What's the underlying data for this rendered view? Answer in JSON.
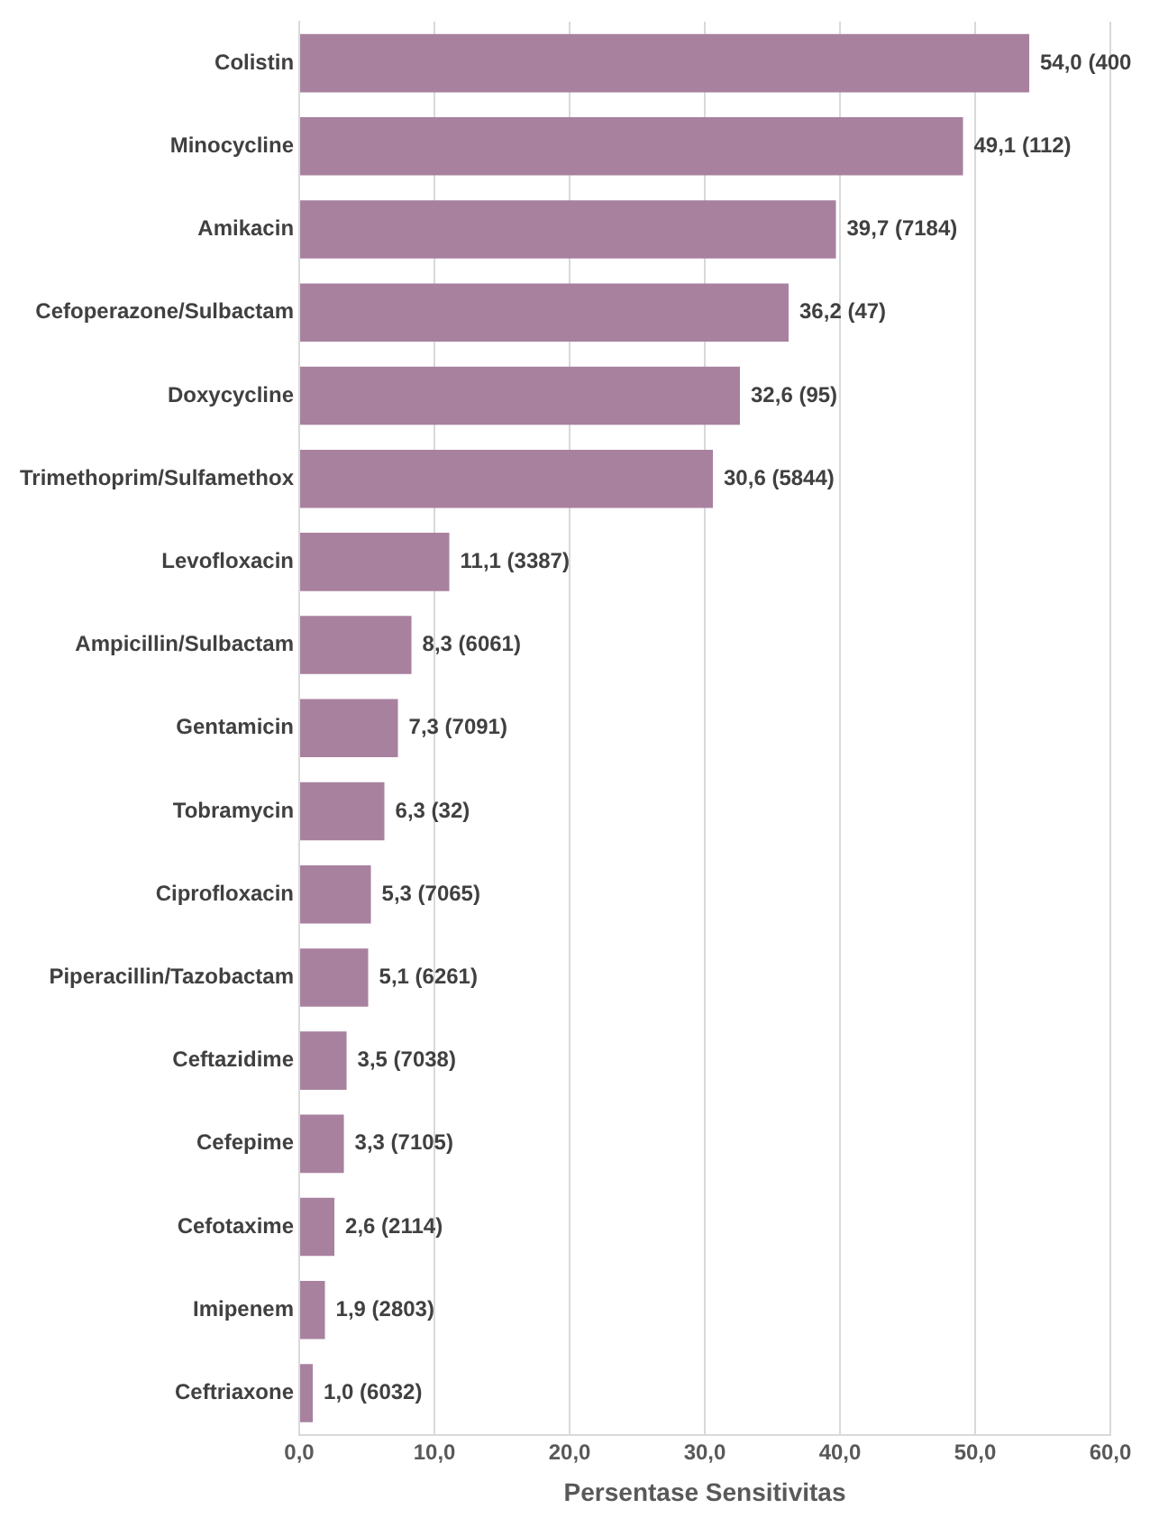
{
  "chart_data": {
    "type": "bar",
    "orientation": "horizontal",
    "xlabel": "Persentase Sensitivitas",
    "categories": [
      "Colistin",
      "Minocycline",
      "Amikacin",
      "Cefoperazone/Sulbactam",
      "Doxycycline",
      "Trimethoprim/Sulfamethox",
      "Levofloxacin",
      "Ampicillin/Sulbactam",
      "Gentamicin",
      "Tobramycin",
      "Ciprofloxacin",
      "Piperacillin/Tazobactam",
      "Ceftazidime",
      "Cefepime",
      "Cefotaxime",
      "Imipenem",
      "Ceftriaxone"
    ],
    "values": [
      54.0,
      49.1,
      39.7,
      36.2,
      32.6,
      30.6,
      11.1,
      8.3,
      7.3,
      6.3,
      5.3,
      5.1,
      3.5,
      3.3,
      2.6,
      1.9,
      1.0
    ],
    "value_labels": [
      "54,0 (400",
      "49,1 (112)",
      "39,7 (7184)",
      "36,2 (47)",
      "32,6 (95)",
      "30,6 (5844)",
      "11,1 (3387)",
      "8,3 (6061)",
      "7,3 (7091)",
      "6,3 (32)",
      "5,3 (7065)",
      "5,1 (6261)",
      "3,5 (7038)",
      "3,3 (7105)",
      "2,6 (2114)",
      "1,9 (2803)",
      "1,0 (6032)"
    ],
    "color": "#a8819f",
    "xlim": [
      0,
      60
    ],
    "xticks": [
      {
        "value": 0,
        "label": "0,0"
      },
      {
        "value": 10,
        "label": "10,0"
      },
      {
        "value": 20,
        "label": "20,0"
      },
      {
        "value": 30,
        "label": "30,0"
      },
      {
        "value": 40,
        "label": "40,0"
      },
      {
        "value": 50,
        "label": "50,0"
      },
      {
        "value": 60,
        "label": "60,0"
      }
    ],
    "grid": "x",
    "legend": false
  }
}
